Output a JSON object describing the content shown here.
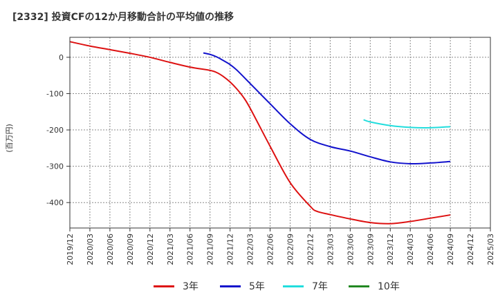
{
  "chart_data": {
    "type": "line",
    "title": "[2332]  投資CFの12か月移動合計の平均値の推移",
    "ylabel": "(百万円)",
    "xlabel": "",
    "ylim": [
      -470,
      55
    ],
    "yticks": [
      0,
      -100,
      -200,
      -300,
      -400
    ],
    "ytick_labels": [
      "0",
      "-100",
      "-200",
      "-300",
      "-400"
    ],
    "xticks": [
      "2019/12",
      "2020/03",
      "2020/06",
      "2020/09",
      "2020/12",
      "2021/03",
      "2021/06",
      "2021/09",
      "2021/12",
      "2022/03",
      "2022/06",
      "2022/09",
      "2022/12",
      "2023/03",
      "2023/06",
      "2023/09",
      "2023/12",
      "2024/03",
      "2024/06",
      "2024/09",
      "2024/12",
      "2025/03"
    ],
    "grid": true,
    "legend_position": "bottom",
    "series": [
      {
        "name": "3年",
        "color": "#dd1111",
        "x": [
          "2019/12",
          "2020/03",
          "2020/06",
          "2020/09",
          "2020/12",
          "2021/03",
          "2021/06",
          "2021/09",
          "2021/10",
          "2021/11",
          "2021/12",
          "2022/01",
          "2022/02",
          "2022/03",
          "2022/06",
          "2022/09",
          "2022/12",
          "2023/01",
          "2023/03",
          "2023/06",
          "2023/09",
          "2023/12",
          "2024/03",
          "2024/06",
          "2024/09"
        ],
        "values": [
          43,
          31,
          21,
          11,
          0,
          -14,
          -27,
          -36,
          -42,
          -53,
          -68,
          -87,
          -110,
          -140,
          -245,
          -345,
          -410,
          -424,
          -433,
          -445,
          -455,
          -458,
          -452,
          -443,
          -434
        ]
      },
      {
        "name": "5年",
        "color": "#1111cc",
        "x": [
          "2021/08",
          "2021/09",
          "2021/10",
          "2021/11",
          "2021/12",
          "2022/01",
          "2022/03",
          "2022/06",
          "2022/09",
          "2022/12",
          "2023/03",
          "2023/06",
          "2023/09",
          "2023/12",
          "2024/03",
          "2024/06",
          "2024/09"
        ],
        "values": [
          12,
          8,
          1,
          -9,
          -20,
          -35,
          -72,
          -128,
          -183,
          -226,
          -246,
          -258,
          -274,
          -288,
          -293,
          -291,
          -287
        ]
      },
      {
        "name": "7年",
        "color": "#22dddd",
        "x": [
          "2023/08",
          "2023/09",
          "2023/12",
          "2024/03",
          "2024/06",
          "2024/09"
        ],
        "values": [
          -172,
          -178,
          -188,
          -193,
          -194,
          -191
        ]
      },
      {
        "name": "10年",
        "color": "#228822",
        "x": [],
        "values": []
      }
    ]
  }
}
